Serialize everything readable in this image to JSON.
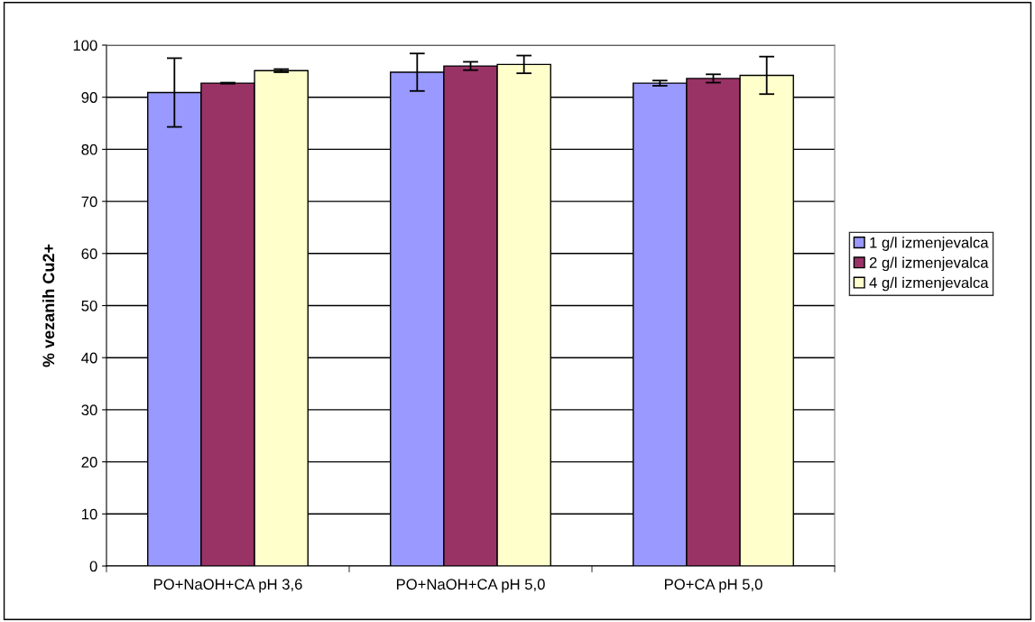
{
  "chart_data": {
    "type": "bar",
    "ylabel": "% vezanih Cu2+",
    "categories": [
      "PO+NaOH+CA pH 3,6",
      "PO+NaOH+CA pH 5,0",
      "PO+CA pH 5,0"
    ],
    "series": [
      {
        "name": "1 g/l izmenjevalca",
        "color": "#9999ff",
        "values": [
          90.9,
          94.8,
          92.7
        ],
        "errors": [
          6.6,
          3.6,
          0.5
        ]
      },
      {
        "name": "2 g/l izmenjevalca",
        "color": "#993366",
        "values": [
          92.7,
          96.0,
          93.6
        ],
        "errors": [
          0.1,
          0.8,
          0.8
        ]
      },
      {
        "name": "4 g/l izmenjevalca",
        "color": "#ffffcc",
        "values": [
          95.1,
          96.3,
          94.2
        ],
        "errors": [
          0.3,
          1.7,
          3.6
        ]
      }
    ],
    "ylim": [
      0,
      100
    ],
    "yticks": [
      0,
      10,
      20,
      30,
      40,
      50,
      60,
      70,
      80,
      90,
      100
    ],
    "grid": "y",
    "legend": "right"
  }
}
